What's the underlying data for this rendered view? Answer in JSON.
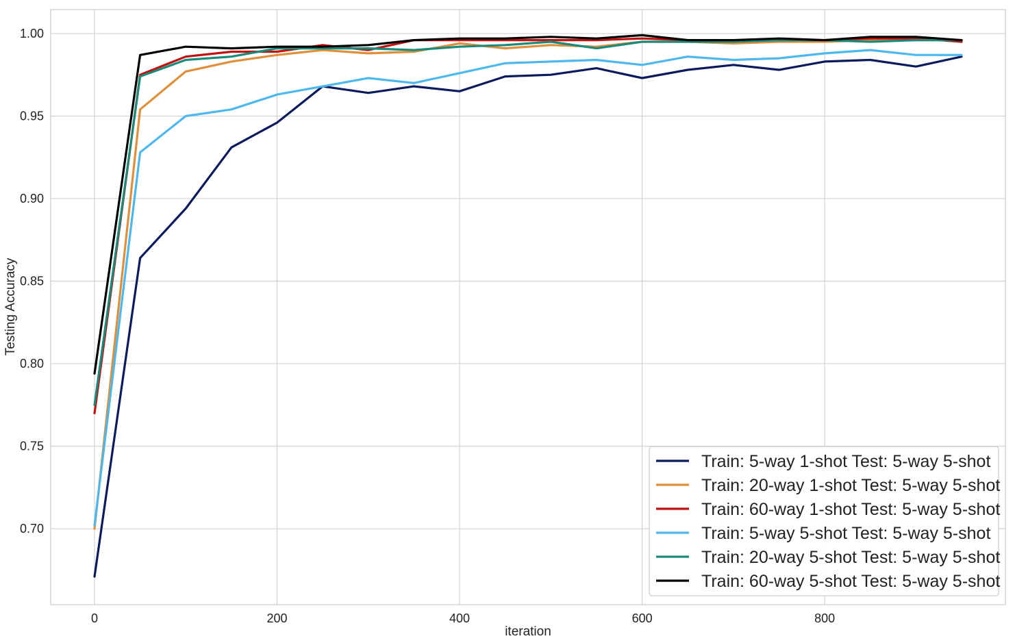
{
  "chart_data": {
    "type": "line",
    "title": "",
    "xlabel": "iteration",
    "ylabel": "Testing Accuracy",
    "xlim": [
      -48,
      998
    ],
    "ylim": [
      0.654,
      1.0145
    ],
    "xticks": [
      0,
      200,
      400,
      600,
      800
    ],
    "xtick_labels": [
      "0",
      "200",
      "400",
      "600",
      "800"
    ],
    "yticks": [
      0.7,
      0.75,
      0.8,
      0.85,
      0.9,
      0.95,
      1.0
    ],
    "ytick_labels": [
      "0.70",
      "0.75",
      "0.80",
      "0.85",
      "0.90",
      "0.95",
      "1.00"
    ],
    "grid": true,
    "legend_position": "bottom-right",
    "x": [
      0,
      50,
      100,
      150,
      200,
      250,
      300,
      350,
      400,
      450,
      500,
      550,
      600,
      650,
      700,
      750,
      800,
      850,
      900,
      950
    ],
    "series": [
      {
        "name": "Train: 5-way 1-shot Test: 5-way 5-shot",
        "color": "#0a1a5c",
        "values": [
          0.671,
          0.864,
          0.894,
          0.931,
          0.946,
          0.968,
          0.964,
          0.968,
          0.965,
          0.974,
          0.975,
          0.979,
          0.973,
          0.978,
          0.981,
          0.978,
          0.983,
          0.984,
          0.98,
          0.986
        ]
      },
      {
        "name": "Train: 20-way 1-shot Test: 5-way 5-shot",
        "color": "#df8f3a",
        "values": [
          0.7,
          0.954,
          0.977,
          0.983,
          0.987,
          0.99,
          0.988,
          0.989,
          0.994,
          0.991,
          0.993,
          0.992,
          0.995,
          0.995,
          0.994,
          0.995,
          0.995,
          0.996,
          0.996,
          0.996
        ]
      },
      {
        "name": "Train: 60-way 1-shot Test: 5-way 5-shot",
        "color": "#c0100f",
        "values": [
          0.77,
          0.975,
          0.986,
          0.989,
          0.989,
          0.993,
          0.99,
          0.996,
          0.996,
          0.996,
          0.996,
          0.996,
          0.997,
          0.996,
          0.996,
          0.996,
          0.996,
          0.997,
          0.997,
          0.995
        ]
      },
      {
        "name": "Train: 5-way 5-shot Test: 5-way 5-shot",
        "color": "#4cb8ee",
        "values": [
          0.702,
          0.928,
          0.95,
          0.954,
          0.963,
          0.968,
          0.973,
          0.97,
          0.976,
          0.982,
          0.983,
          0.984,
          0.981,
          0.986,
          0.984,
          0.985,
          0.988,
          0.99,
          0.987,
          0.987
        ]
      },
      {
        "name": "Train: 20-way 5-shot Test: 5-way 5-shot",
        "color": "#1a8a7a",
        "values": [
          0.775,
          0.974,
          0.984,
          0.986,
          0.991,
          0.991,
          0.991,
          0.99,
          0.992,
          0.993,
          0.995,
          0.991,
          0.995,
          0.995,
          0.995,
          0.996,
          0.996,
          0.995,
          0.996,
          0.996
        ]
      },
      {
        "name": "Train: 60-way 5-shot Test: 5-way 5-shot",
        "color": "#000000",
        "values": [
          0.794,
          0.987,
          0.992,
          0.991,
          0.992,
          0.992,
          0.993,
          0.996,
          0.997,
          0.997,
          0.998,
          0.997,
          0.999,
          0.996,
          0.996,
          0.997,
          0.996,
          0.998,
          0.998,
          0.996
        ]
      }
    ]
  }
}
